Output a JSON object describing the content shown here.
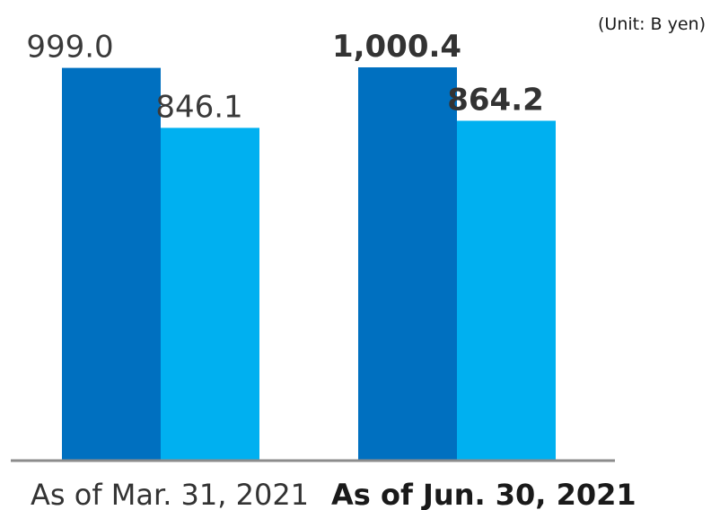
{
  "unit": "(Unit: B yen)",
  "chart_data": {
    "type": "bar",
    "categories": [
      "As of Mar. 31, 2021",
      "As of Jun. 30, 2021"
    ],
    "category_emphasis": [
      false,
      true
    ],
    "series": [
      {
        "values": [
          999.0,
          1000.4
        ],
        "labels": [
          "999.0",
          "1,000.4"
        ],
        "color": "#0070c0"
      },
      {
        "values": [
          846.1,
          864.2
        ],
        "labels": [
          "846.1",
          "864.2"
        ],
        "color": "#00b0f0"
      }
    ],
    "ylim": [
      0,
      1000.4
    ],
    "grid": false,
    "legend": "none",
    "axis_color": "#8c8c8c"
  }
}
